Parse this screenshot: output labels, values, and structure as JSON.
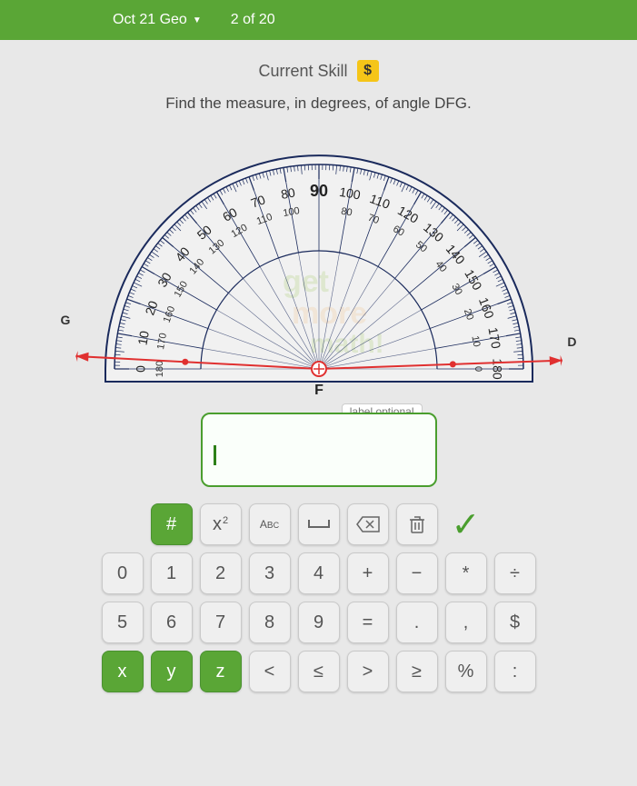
{
  "header": {
    "title": "Oct 21 Geo",
    "progress": "2 of 20"
  },
  "skill": {
    "label": "Current Skill",
    "badge": "$"
  },
  "question": "Find the measure, in degrees, of angle DFG.",
  "protractor": {
    "outer_scale": [
      0,
      10,
      20,
      30,
      40,
      50,
      60,
      70,
      80,
      90,
      100,
      110,
      120,
      130,
      140,
      150,
      160,
      170,
      180
    ],
    "inner_scale": [
      180,
      170,
      160,
      150,
      140,
      130,
      120,
      110,
      100,
      90,
      80,
      70,
      60,
      50,
      40,
      30,
      20,
      10,
      0
    ],
    "center_label": "F",
    "left_label": "G",
    "right_label": "D",
    "ray_left_angle_deg": 3,
    "ray_right_angle_deg": 178,
    "watermark_lines": [
      "get",
      "more",
      "math!"
    ],
    "outline_color": "#1a2a5c",
    "tick_color": "#1a2a5c",
    "ray_color": "#e03030",
    "watermark_color": "#c8d8b0",
    "label_font_size_major": 14,
    "label_font_size_90": 18
  },
  "answer": {
    "value": "",
    "label_text": "label optional"
  },
  "keypad": {
    "row0": [
      {
        "label": "#",
        "green": true,
        "name": "hash-key"
      },
      {
        "label": "x²",
        "name": "exponent-key",
        "html": "x<sup>2</sup>"
      },
      {
        "label": "ABC",
        "name": "abc-key",
        "html": "<span style='font-size:12px'>A<span class='sub'>B</span><span style='font-size:9px'>C</span></span>"
      },
      {
        "label": "␣",
        "name": "space-key",
        "html": "<svg width='26' height='14'><path d='M2 2 v8 h22 v-8' fill='none' stroke='#666' stroke-width='2'/></svg>"
      },
      {
        "label": "⌫",
        "name": "backspace-key",
        "html": "<svg width='28' height='20'><path d='M8 2 L2 10 L8 18 H26 V2 Z' fill='none' stroke='#666' stroke-width='1.5'/><path d='M12 6 L20 14 M20 6 L12 14' stroke='#666' stroke-width='1.5'/></svg>"
      },
      {
        "label": "🗑",
        "name": "trash-key",
        "html": "<svg width='20' height='22'><rect x='4' y='6' width='12' height='14' rx='1' fill='none' stroke='#666' stroke-width='1.5'/><path d='M2 6 h16 M7 3 h6 v3' fill='none' stroke='#666' stroke-width='1.5'/><path d='M8 9 v8 M12 9 v8' stroke='#666' stroke-width='1.5'/></svg>"
      },
      {
        "label": "✓",
        "name": "check-key",
        "check": true
      }
    ],
    "row1": [
      "0",
      "1",
      "2",
      "3",
      "4",
      "+",
      "−",
      "*",
      "÷"
    ],
    "row2": [
      "5",
      "6",
      "7",
      "8",
      "9",
      "=",
      ".",
      ",",
      "$"
    ],
    "row3": [
      {
        "label": "x",
        "green": true
      },
      {
        "label": "y",
        "green": true
      },
      {
        "label": "z",
        "green": true
      },
      {
        "label": "<"
      },
      {
        "label": "≤"
      },
      {
        "label": ">"
      },
      {
        "label": "≥"
      },
      {
        "label": "%"
      },
      {
        "label": ":"
      }
    ]
  }
}
